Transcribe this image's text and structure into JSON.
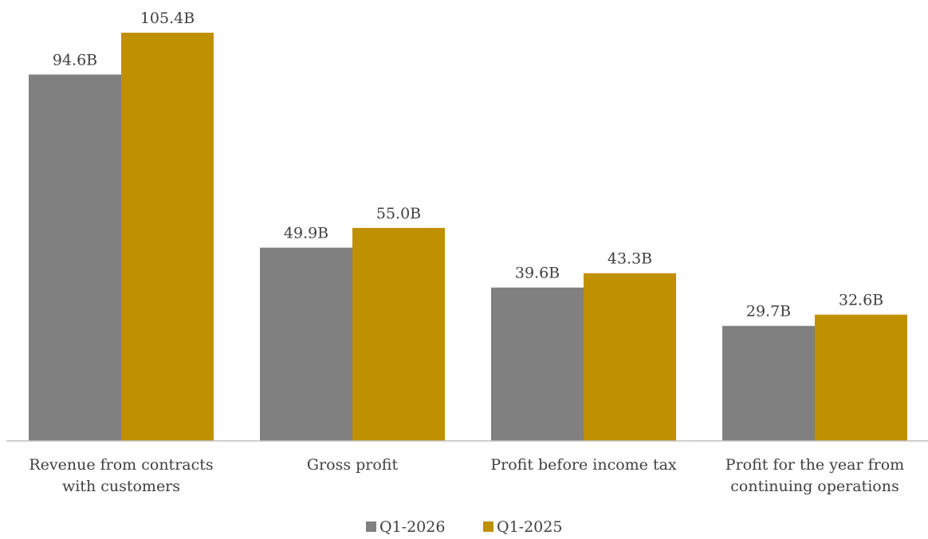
{
  "chart_data": {
    "type": "bar",
    "categories": [
      [
        "Revenue from contracts",
        "with customers"
      ],
      [
        "Gross profit"
      ],
      [
        "Profit before income tax"
      ],
      [
        "Profit for the year from",
        "continuing operations"
      ]
    ],
    "series": [
      {
        "name": "Q1-2026",
        "color": "#808080",
        "values": [
          94.6,
          49.9,
          39.6,
          29.7
        ],
        "labels": [
          "94.6B",
          "49.9B",
          "39.6B",
          "29.7B"
        ]
      },
      {
        "name": "Q1-2025",
        "color": "#BF9000",
        "values": [
          105.4,
          55.0,
          43.3,
          32.6
        ],
        "labels": [
          "105.4B",
          "55.0B",
          "43.3B",
          "32.6B"
        ]
      }
    ],
    "ylim": [
      0,
      105.4
    ],
    "grid": false,
    "legend_position": "bottom",
    "axis_color": "#BFBFBF",
    "text_color": "#404040"
  }
}
